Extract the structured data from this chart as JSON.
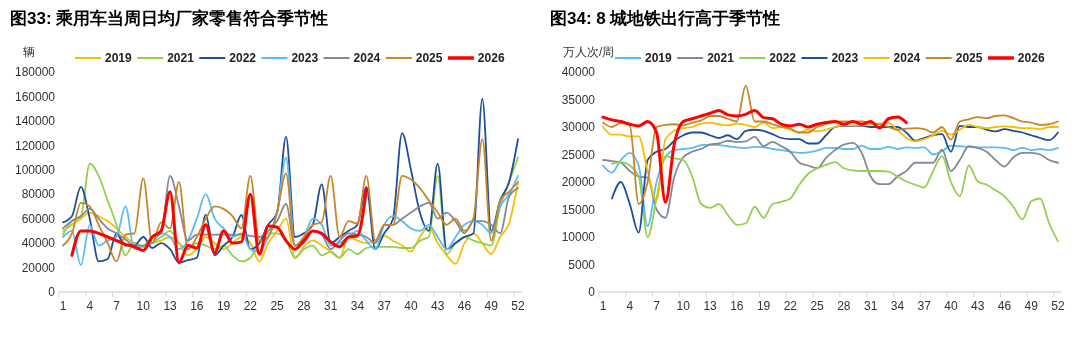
{
  "chart_data": [
    {
      "type": "line",
      "title": "图33: 乘用车当周日均厂家零售符合季节性",
      "ylabel": "辆",
      "legend": "top",
      "grid": false,
      "categories": [
        "1",
        null,
        null,
        "4",
        null,
        null,
        "7",
        null,
        null,
        "10",
        null,
        null,
        "13",
        null,
        null,
        "16",
        null,
        null,
        "19",
        null,
        null,
        "22",
        null,
        null,
        "25",
        null,
        null,
        "28",
        null,
        null,
        "31",
        null,
        null,
        "34",
        null,
        null,
        "37",
        null,
        null,
        "40",
        null,
        null,
        "43",
        null,
        null,
        "46",
        null,
        null,
        "49",
        null,
        null,
        "52"
      ],
      "ylim": [
        0,
        180000
      ],
      "yticks": [
        0,
        20000,
        40000,
        60000,
        80000,
        100000,
        120000,
        140000,
        160000,
        180000
      ],
      "series": [
        {
          "name": "2019",
          "color": "#f5c000",
          "values": [
            50000,
            55000,
            60000,
            65000,
            62000,
            58000,
            52000,
            45000,
            40000,
            37000,
            40000,
            42000,
            45000,
            40000,
            30000,
            35000,
            45000,
            40000,
            35000,
            40000,
            45000,
            40000,
            25000,
            40000,
            50000,
            60000,
            28000,
            37000,
            42000,
            38000,
            33000,
            28000,
            45000,
            42000,
            40000,
            42000,
            46000,
            42000,
            38000,
            33000,
            45000,
            53000,
            40000,
            30000,
            23000,
            40000,
            48000,
            40000,
            31000,
            45000,
            56000,
            90000
          ]
        },
        {
          "name": "2021",
          "color": "#92d050",
          "values": [
            47000,
            58000,
            62000,
            105000,
            95000,
            75000,
            55000,
            30000,
            40000,
            37000,
            40000,
            45000,
            50000,
            40000,
            35000,
            40000,
            38000,
            35000,
            38000,
            30000,
            25000,
            28000,
            40000,
            48000,
            48000,
            42000,
            28000,
            35000,
            38000,
            30000,
            33000,
            28000,
            35000,
            31000,
            36000,
            37000,
            37000,
            37000,
            36000,
            36000,
            42000,
            45000,
            95000,
            31000,
            40000,
            45000,
            42000,
            40000,
            38000,
            70000,
            90000,
            110000
          ]
        },
        {
          "name": "2022",
          "color": "#1f4e9a",
          "values": [
            57000,
            62000,
            86000,
            60000,
            25000,
            27000,
            48000,
            38000,
            38000,
            45000,
            36000,
            40000,
            35000,
            24000,
            26000,
            28000,
            63000,
            30000,
            38000,
            45000,
            63000,
            35000,
            40000,
            55000,
            65000,
            127000,
            45000,
            48000,
            55000,
            88000,
            40000,
            45000,
            50000,
            55000,
            86000,
            35000,
            48000,
            60000,
            130000,
            100000,
            65000,
            50000,
            105000,
            35000,
            40000,
            45000,
            48000,
            158000,
            50000,
            75000,
            90000,
            125000
          ]
        },
        {
          "name": "2023",
          "color": "#5bbcf5",
          "values": [
            45000,
            50000,
            22000,
            55000,
            38000,
            42000,
            45000,
            70000,
            35000,
            38000,
            40000,
            48000,
            45000,
            35000,
            42000,
            60000,
            80000,
            60000,
            52000,
            45000,
            48000,
            35000,
            33000,
            45000,
            65000,
            110000,
            38000,
            45000,
            60000,
            55000,
            38000,
            40000,
            45000,
            50000,
            42000,
            35000,
            55000,
            62000,
            58000,
            52000,
            50000,
            55000,
            45000,
            35000,
            45000,
            55000,
            58000,
            55000,
            48000,
            70000,
            80000,
            95000
          ]
        },
        {
          "name": "2024",
          "color": "#808a99",
          "values": [
            52000,
            58000,
            62000,
            68000,
            60000,
            52000,
            48000,
            43000,
            38000,
            38000,
            45000,
            48000,
            95000,
            70000,
            42000,
            47000,
            47000,
            47000,
            47000,
            47000,
            47000,
            46000,
            45000,
            50000,
            58000,
            72000,
            38000,
            40000,
            50000,
            47000,
            35000,
            42000,
            48000,
            47000,
            45000,
            40000,
            55000,
            55000,
            60000,
            65000,
            70000,
            73000,
            60000,
            65000,
            58000,
            48000,
            58000,
            58000,
            55000,
            48000,
            78000,
            85000
          ]
        },
        {
          "name": "2025",
          "color": "#c8862a",
          "values": [
            38000,
            48000,
            73000,
            70000,
            55000,
            40000,
            25000,
            47000,
            48000,
            93000,
            40000,
            57000,
            52000,
            90000,
            35000,
            45000,
            60000,
            70000,
            68000,
            62000,
            52000,
            95000,
            42000,
            45000,
            65000,
            97000,
            38000,
            45000,
            55000,
            57000,
            95000,
            45000,
            58000,
            56000,
            95000,
            42000,
            55000,
            55000,
            95000,
            92000,
            85000,
            75000,
            65000,
            55000,
            60000,
            50000,
            60000,
            125000,
            42000,
            75000,
            82000,
            90000
          ]
        },
        {
          "name": "2026",
          "color": "#ff0000",
          "values": [
            null,
            30000,
            50000,
            50000,
            48000,
            45000,
            42000,
            39000,
            37000,
            34000,
            45000,
            50000,
            82000,
            24000,
            38000,
            36000,
            55000,
            32000,
            50000,
            40000,
            41000,
            80000,
            31000,
            54000,
            53000,
            42000,
            35000,
            42000,
            50000,
            48000,
            41000,
            37000,
            45000,
            46000,
            84000,
            null,
            null,
            null,
            null,
            null,
            null,
            null,
            null,
            null,
            null,
            null,
            null,
            null,
            null,
            null,
            null,
            null
          ]
        }
      ]
    },
    {
      "type": "line",
      "title": "图34: 8 城地铁出行高于季节性",
      "ylabel": "万人次/周",
      "legend": "top",
      "grid": false,
      "categories": [
        "1",
        null,
        null,
        "4",
        null,
        null,
        "7",
        null,
        null,
        "10",
        null,
        null,
        "13",
        null,
        null,
        "16",
        null,
        null,
        "19",
        null,
        null,
        "22",
        null,
        null,
        "25",
        null,
        null,
        "28",
        null,
        null,
        "31",
        null,
        null,
        "34",
        null,
        null,
        "37",
        null,
        null,
        "40",
        null,
        null,
        "43",
        null,
        null,
        "46",
        null,
        null,
        "49",
        null,
        null,
        "52"
      ],
      "ylim": [
        0,
        40000
      ],
      "yticks": [
        0,
        5000,
        10000,
        15000,
        20000,
        25000,
        30000,
        35000,
        40000
      ],
      "series": [
        {
          "name": "2019",
          "color": "#5bbcf5",
          "values": [
            23000,
            21700,
            24000,
            25300,
            23000,
            12000,
            20000,
            24500,
            25800,
            26000,
            26200,
            26700,
            26800,
            26700,
            26500,
            26300,
            26200,
            26400,
            26300,
            26000,
            25800,
            25500,
            25300,
            25400,
            25700,
            26200,
            26200,
            26000,
            26000,
            26600,
            26000,
            26000,
            26400,
            26000,
            26300,
            26200,
            26300,
            25000,
            25600,
            26600,
            26500,
            26400,
            26300,
            26300,
            26300,
            26200,
            25800,
            26200,
            25800,
            26000,
            25800,
            26200
          ]
        },
        {
          "name": "2021",
          "color": "#808a99",
          "values": [
            24000,
            23800,
            23500,
            22000,
            21000,
            20800,
            15000,
            13500,
            21000,
            24500,
            25500,
            26000,
            26800,
            27000,
            27500,
            27300,
            27400,
            28200,
            26500,
            27300,
            26500,
            25500,
            23500,
            23000,
            22500,
            24400,
            25800,
            26800,
            27100,
            25300,
            21000,
            19600,
            19600,
            21000,
            22000,
            23500,
            23500,
            23500,
            25900,
            22000,
            24000,
            26500,
            26200,
            25500,
            24000,
            22800,
            24500,
            25300,
            25300,
            25000,
            24000,
            23500
          ]
        },
        {
          "name": "2022",
          "color": "#92d050",
          "values": [
            null,
            23300,
            23600,
            23000,
            21000,
            10000,
            17000,
            24700,
            24300,
            24000,
            21000,
            16000,
            15300,
            16000,
            14000,
            12200,
            12500,
            15500,
            13500,
            16000,
            16400,
            17000,
            19500,
            21500,
            22500,
            23100,
            23600,
            22500,
            22100,
            22000,
            22000,
            22000,
            21900,
            21000,
            20100,
            19500,
            19000,
            22000,
            24700,
            20000,
            17400,
            23000,
            20100,
            19500,
            18500,
            17400,
            15500,
            13200,
            16500,
            17000,
            12500,
            9200
          ]
        },
        {
          "name": "2023",
          "color": "#1f4e9a",
          "values": [
            null,
            17000,
            20000,
            16000,
            10800,
            24000,
            25500,
            26000,
            27500,
            28500,
            29000,
            29000,
            28500,
            28000,
            28500,
            27800,
            29300,
            29500,
            29300,
            28700,
            28000,
            27800,
            27800,
            27000,
            27000,
            28500,
            30000,
            30200,
            30200,
            30200,
            30000,
            30000,
            30000,
            30000,
            29000,
            27500,
            28000,
            28500,
            28700,
            25500,
            30200,
            30000,
            30000,
            29500,
            29200,
            29600,
            29300,
            29000,
            28500,
            28000,
            27600,
            29000
          ]
        },
        {
          "name": "2024",
          "color": "#f5c000",
          "values": [
            30000,
            28600,
            28600,
            28300,
            28300,
            22000,
            16700,
            27800,
            29300,
            29800,
            30000,
            30600,
            30800,
            30500,
            30300,
            30600,
            30400,
            30000,
            30800,
            29800,
            30000,
            29500,
            29000,
            29500,
            29200,
            29500,
            30000,
            30300,
            30300,
            30300,
            30500,
            30600,
            30700,
            29500,
            28000,
            27400,
            27800,
            28500,
            29300,
            28600,
            29500,
            30400,
            30000,
            29800,
            30000,
            30100,
            30000,
            29800,
            29800,
            29600,
            30000,
            30000
          ]
        },
        {
          "name": "2025",
          "color": "#c8862a",
          "values": [
            30800,
            30000,
            30700,
            30300,
            16000,
            20000,
            30000,
            30400,
            30500,
            30300,
            30800,
            31200,
            32000,
            32000,
            31500,
            31000,
            37500,
            31000,
            31000,
            30500,
            30000,
            29700,
            29000,
            29000,
            30000,
            30500,
            31000,
            31000,
            31000,
            31000,
            30800,
            30500,
            30000,
            29500,
            29700,
            29800,
            29600,
            29000,
            30000,
            27700,
            31000,
            31400,
            31800,
            31600,
            32000,
            32100,
            31600,
            31000,
            30800,
            30400,
            30500,
            31000
          ]
        },
        {
          "name": "2026",
          "color": "#ff0000",
          "values": [
            31800,
            31300,
            31000,
            30500,
            30200,
            31000,
            29000,
            16300,
            27000,
            31000,
            31500,
            32000,
            32500,
            33000,
            32200,
            32000,
            32300,
            33000,
            31700,
            31500,
            30500,
            30200,
            30500,
            30000,
            30500,
            30800,
            31000,
            30500,
            31000,
            30500,
            31000,
            29800,
            31500,
            31800,
            30800,
            null,
            null,
            null,
            null,
            null,
            null,
            null,
            null,
            null,
            null,
            null,
            null,
            null,
            null,
            null,
            null,
            null
          ]
        }
      ]
    }
  ]
}
